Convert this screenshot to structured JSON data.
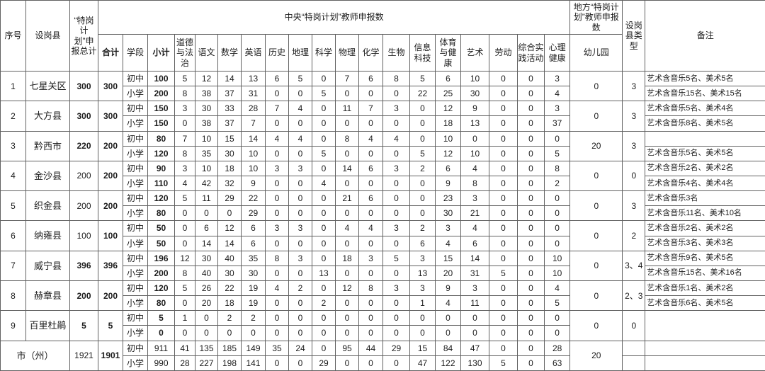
{
  "header": {
    "serial": "序号",
    "county": "设岗县",
    "plan_total": "“特岗计划”申报总计",
    "central_group": "中央“特岗计划”教师申报数",
    "local_group": "地方“特岗计划”教师申报数",
    "heji": "合计",
    "stage": "学段",
    "xiaoji": "小计",
    "subjects": [
      "道德与法治",
      "语文",
      "数学",
      "英语",
      "历史",
      "地理",
      "科学",
      "物理",
      "化学",
      "生物",
      "信息科技",
      "体育与健康",
      "艺术",
      "劳动",
      "综合实践活动",
      "心理健康"
    ],
    "kindergarten": "幼儿园",
    "county_type": "设岗县类型",
    "remark": "备注"
  },
  "rows": [
    {
      "no": "1",
      "county": "七星关区",
      "plan_total": "300",
      "heji": "300",
      "kindergarten": "0",
      "county_type": "3",
      "sub_rows": [
        {
          "stage": "初中",
          "xiaoji": "100",
          "subjects": [
            "5",
            "12",
            "14",
            "13",
            "6",
            "5",
            "0",
            "7",
            "6",
            "8",
            "5",
            "6",
            "10",
            "0",
            "0",
            "3"
          ],
          "remark": "艺术含音乐5名、美术5名"
        },
        {
          "stage": "小学",
          "xiaoji": "200",
          "subjects": [
            "8",
            "38",
            "37",
            "31",
            "0",
            "0",
            "5",
            "0",
            "0",
            "0",
            "22",
            "25",
            "30",
            "0",
            "0",
            "4"
          ],
          "remark": "艺术含音乐15名、美术15名"
        }
      ]
    },
    {
      "no": "2",
      "county": "大方县",
      "plan_total": "300",
      "heji": "300",
      "kindergarten": "0",
      "county_type": "3",
      "sub_rows": [
        {
          "stage": "初中",
          "xiaoji": "150",
          "subjects": [
            "3",
            "30",
            "33",
            "28",
            "7",
            "4",
            "0",
            "11",
            "7",
            "3",
            "0",
            "12",
            "9",
            "0",
            "0",
            "3"
          ],
          "remark": "艺术含音乐5名、美术4名"
        },
        {
          "stage": "小学",
          "xiaoji": "150",
          "subjects": [
            "0",
            "38",
            "37",
            "7",
            "0",
            "0",
            "0",
            "0",
            "0",
            "0",
            "0",
            "18",
            "13",
            "0",
            "0",
            "37"
          ],
          "remark": "艺术含音乐8名、美术5名"
        }
      ]
    },
    {
      "no": "3",
      "county": "黔西市",
      "plan_total": "220",
      "heji": "200",
      "kindergarten": "20",
      "county_type": "3",
      "sub_rows": [
        {
          "stage": "初中",
          "xiaoji": "80",
          "subjects": [
            "7",
            "10",
            "15",
            "14",
            "4",
            "4",
            "0",
            "8",
            "4",
            "4",
            "0",
            "10",
            "0",
            "0",
            "0",
            "0"
          ],
          "remark": ""
        },
        {
          "stage": "小学",
          "xiaoji": "120",
          "subjects": [
            "8",
            "35",
            "30",
            "10",
            "0",
            "0",
            "5",
            "0",
            "0",
            "0",
            "5",
            "12",
            "10",
            "0",
            "0",
            "5"
          ],
          "remark": "艺术含音乐5名、美术5名"
        }
      ]
    },
    {
      "no": "4",
      "county": "金沙县",
      "plan_total": "200",
      "heji": "200",
      "kindergarten": "0",
      "county_type": "0",
      "sub_rows": [
        {
          "stage": "初中",
          "xiaoji": "90",
          "subjects": [
            "3",
            "10",
            "18",
            "10",
            "3",
            "3",
            "0",
            "14",
            "6",
            "3",
            "2",
            "6",
            "4",
            "0",
            "0",
            "8"
          ],
          "remark": "艺术含音乐2名、美术2名"
        },
        {
          "stage": "小学",
          "xiaoji": "110",
          "subjects": [
            "4",
            "42",
            "32",
            "9",
            "0",
            "0",
            "4",
            "0",
            "0",
            "0",
            "0",
            "9",
            "8",
            "0",
            "0",
            "2"
          ],
          "remark": "艺术含音乐4名、美术4名"
        }
      ]
    },
    {
      "no": "5",
      "county": "织金县",
      "plan_total": "200",
      "heji": "200",
      "kindergarten": "0",
      "county_type": "3",
      "sub_rows": [
        {
          "stage": "初中",
          "xiaoji": "120",
          "subjects": [
            "5",
            "11",
            "29",
            "22",
            "0",
            "0",
            "0",
            "21",
            "6",
            "0",
            "0",
            "23",
            "3",
            "0",
            "0",
            "0"
          ],
          "remark": "艺术含音乐3名"
        },
        {
          "stage": "小学",
          "xiaoji": "80",
          "subjects": [
            "0",
            "0",
            "0",
            "29",
            "0",
            "0",
            "0",
            "0",
            "0",
            "0",
            "0",
            "30",
            "21",
            "0",
            "0",
            "0"
          ],
          "remark": "艺术含音乐11名、美术10名"
        }
      ]
    },
    {
      "no": "6",
      "county": "纳雍县",
      "plan_total": "100",
      "heji": "100",
      "kindergarten": "0",
      "county_type": "2",
      "sub_rows": [
        {
          "stage": "初中",
          "xiaoji": "50",
          "subjects": [
            "0",
            "6",
            "12",
            "6",
            "3",
            "3",
            "0",
            "4",
            "4",
            "3",
            "2",
            "3",
            "4",
            "0",
            "0",
            "0"
          ],
          "remark": "艺术含音乐2名、美术2名"
        },
        {
          "stage": "小学",
          "xiaoji": "50",
          "subjects": [
            "0",
            "14",
            "14",
            "6",
            "0",
            "0",
            "0",
            "0",
            "0",
            "0",
            "6",
            "4",
            "6",
            "0",
            "0",
            "0"
          ],
          "remark": "艺术含音乐3名、美术3名"
        }
      ]
    },
    {
      "no": "7",
      "county": "威宁县",
      "plan_total": "396",
      "heji": "396",
      "kindergarten": "0",
      "county_type": "3、4",
      "sub_rows": [
        {
          "stage": "初中",
          "xiaoji": "196",
          "subjects": [
            "12",
            "30",
            "40",
            "35",
            "8",
            "3",
            "0",
            "18",
            "3",
            "5",
            "3",
            "15",
            "14",
            "0",
            "0",
            "10"
          ],
          "remark": "艺术含音乐9名、美术5名"
        },
        {
          "stage": "小学",
          "xiaoji": "200",
          "subjects": [
            "8",
            "40",
            "30",
            "30",
            "0",
            "0",
            "13",
            "0",
            "0",
            "0",
            "13",
            "20",
            "31",
            "5",
            "0",
            "10"
          ],
          "remark": "艺术含音乐15名、美术16名"
        }
      ]
    },
    {
      "no": "8",
      "county": "赫章县",
      "plan_total": "200",
      "heji": "200",
      "kindergarten": "0",
      "county_type": "2、3",
      "sub_rows": [
        {
          "stage": "初中",
          "xiaoji": "120",
          "subjects": [
            "5",
            "26",
            "22",
            "19",
            "4",
            "2",
            "0",
            "12",
            "8",
            "3",
            "3",
            "9",
            "3",
            "0",
            "0",
            "4"
          ],
          "remark": "艺术含音乐1名、美术2名"
        },
        {
          "stage": "小学",
          "xiaoji": "80",
          "subjects": [
            "0",
            "20",
            "18",
            "19",
            "0",
            "0",
            "2",
            "0",
            "0",
            "0",
            "1",
            "4",
            "11",
            "0",
            "0",
            "5"
          ],
          "remark": "艺术含音乐6名、美术5名"
        }
      ]
    },
    {
      "no": "9",
      "county": "百里杜鹃",
      "plan_total": "5",
      "heji": "5",
      "kindergarten": "0",
      "county_type": "0",
      "sub_rows": [
        {
          "stage": "初中",
          "xiaoji": "5",
          "subjects": [
            "1",
            "0",
            "2",
            "2",
            "0",
            "0",
            "0",
            "0",
            "0",
            "0",
            "0",
            "0",
            "0",
            "0",
            "0",
            "0"
          ],
          "remark": null
        },
        {
          "stage": "小学",
          "xiaoji": "0",
          "subjects": [
            "0",
            "0",
            "0",
            "0",
            "0",
            "0",
            "0",
            "0",
            "0",
            "0",
            "0",
            "0",
            "0",
            "0",
            "0",
            "0"
          ],
          "remark": null
        }
      ]
    }
  ],
  "summary": {
    "label": "市（州）",
    "plan_total": "1921",
    "heji": "1901",
    "kindergarten": "20",
    "sub_rows": [
      {
        "stage": "初中",
        "xiaoji": "911",
        "subjects": [
          "41",
          "135",
          "185",
          "149",
          "35",
          "24",
          "0",
          "95",
          "44",
          "29",
          "15",
          "84",
          "47",
          "0",
          "0",
          "28"
        ],
        "remark": ""
      },
      {
        "stage": "小学",
        "xiaoji": "990",
        "subjects": [
          "28",
          "227",
          "198",
          "141",
          "0",
          "0",
          "29",
          "0",
          "0",
          "0",
          "47",
          "122",
          "130",
          "5",
          "0",
          "63"
        ],
        "remark": ""
      }
    ]
  }
}
